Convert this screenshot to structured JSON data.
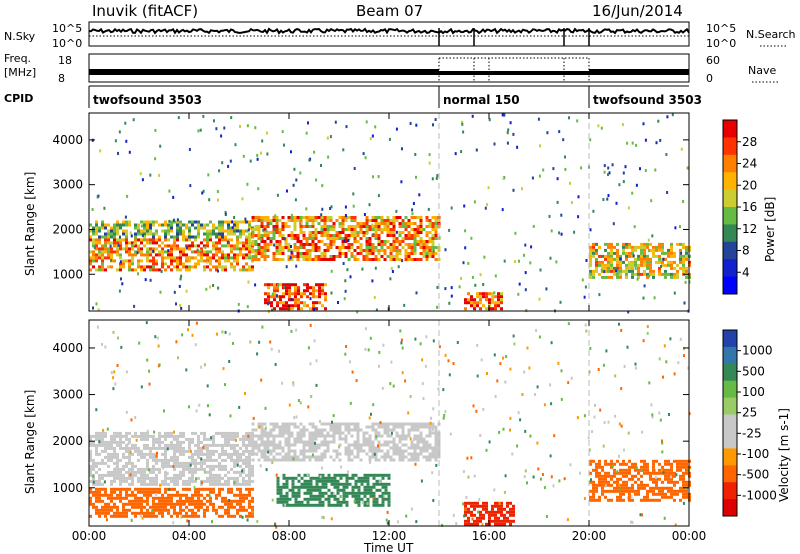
{
  "header": {
    "station": "Inuvik (fitACF)",
    "beam": "Beam 07",
    "date": "16/Jun/2014"
  },
  "strip_noise": {
    "left_label": "N.Sky",
    "left_ticks": [
      "10^5",
      "10^0"
    ],
    "right_ticks": [
      "10^5",
      "10^0"
    ],
    "right_label": "N.Search"
  },
  "strip_freq": {
    "left_label_1": "Freq.",
    "left_label_2": "[MHz]",
    "left_ticks": [
      "18",
      "8"
    ],
    "right_ticks": [
      "60",
      "0"
    ],
    "right_label": "Nave"
  },
  "cpid": {
    "label": "CPID",
    "segments": [
      {
        "name": "twofsound 3503"
      },
      {
        "name": "normal 150"
      },
      {
        "name": "twofsound 3503"
      }
    ],
    "segment_start_hours": [
      0,
      14.0,
      20.0
    ]
  },
  "axes": {
    "xlabel": "Time UT",
    "x_ticks": [
      "00:00",
      "04:00",
      "08:00",
      "12:00",
      "16:00",
      "20:00",
      "00:00"
    ],
    "x_tick_hours": [
      0,
      4,
      8,
      12,
      16,
      20,
      24
    ],
    "ylabel": "Slant Range [km]",
    "y_ticks": [
      "1000",
      "2000",
      "3000",
      "4000"
    ],
    "y_tick_values": [
      1000,
      2000,
      3000,
      4000
    ],
    "ylim": [
      180,
      4600
    ],
    "xlim": [
      0,
      24
    ]
  },
  "power_scale": {
    "label": "Power [dB]",
    "ticks": [
      "28",
      "24",
      "20",
      "16",
      "12",
      "8",
      "4"
    ],
    "colors": [
      "#e60000",
      "#ff3300",
      "#ff8000",
      "#ffb300",
      "#cccc33",
      "#66bb44",
      "#338855",
      "#224499",
      "#1122cc",
      "#0000ff"
    ]
  },
  "velocity_scale": {
    "label": "Velocity [m s-1]",
    "ticks": [
      "1000",
      "500",
      "100",
      "25",
      "-25",
      "-100",
      "-500",
      "-1000"
    ],
    "colors": [
      "#2244aa",
      "#3377aa",
      "#338855",
      "#66bb44",
      "#99cc66",
      "#c8c8c8",
      "#c8c8c8",
      "#ff9900",
      "#ff6600",
      "#ee2200",
      "#dd0000"
    ]
  },
  "chart_data": [
    {
      "type": "heatmap",
      "title": "Power",
      "xlabel": "Time UT",
      "ylabel": "Slant Range [km]",
      "xlim": [
        0,
        24
      ],
      "ylim": [
        180,
        4600
      ],
      "colorbar_label": "Power [dB]",
      "colorbar_ticks": [
        4,
        8,
        12,
        16,
        20,
        24,
        28
      ],
      "echo_bands": [
        {
          "t0": 0.0,
          "t1": 6.5,
          "r0": 1100,
          "r1": 1800,
          "level": 22
        },
        {
          "t0": 0.0,
          "t1": 6.5,
          "r0": 1800,
          "r1": 2200,
          "level": 14
        },
        {
          "t0": 6.5,
          "t1": 14.0,
          "r0": 1300,
          "r1": 2300,
          "level": 22
        },
        {
          "t0": 7.0,
          "t1": 9.5,
          "r0": 200,
          "r1": 800,
          "level": 27
        },
        {
          "t0": 15.0,
          "t1": 16.5,
          "r0": 200,
          "r1": 600,
          "level": 24
        },
        {
          "t0": 20.0,
          "t1": 24.0,
          "r0": 900,
          "r1": 1700,
          "level": 18
        }
      ]
    },
    {
      "type": "heatmap",
      "title": "Velocity",
      "xlabel": "Time UT",
      "ylabel": "Slant Range [km]",
      "xlim": [
        0,
        24
      ],
      "ylim": [
        180,
        4600
      ],
      "colorbar_label": "Velocity [m s-1]",
      "colorbar_ticks": [
        1000,
        500,
        100,
        25,
        -25,
        -100,
        -500,
        -1000
      ],
      "echo_bands": [
        {
          "t0": 0.0,
          "t1": 6.5,
          "r0": 1100,
          "r1": 2200,
          "level": 0
        },
        {
          "t0": 0.0,
          "t1": 6.5,
          "r0": 400,
          "r1": 1000,
          "level": -150
        },
        {
          "t0": 6.5,
          "t1": 14.0,
          "r0": 1600,
          "r1": 2400,
          "level": 0
        },
        {
          "t0": 7.5,
          "t1": 12.0,
          "r0": 600,
          "r1": 1300,
          "level": 200
        },
        {
          "t0": 15.0,
          "t1": 17.0,
          "r0": 200,
          "r1": 700,
          "level": -400
        },
        {
          "t0": 20.0,
          "t1": 24.0,
          "r0": 700,
          "r1": 1600,
          "level": -200
        }
      ]
    }
  ]
}
